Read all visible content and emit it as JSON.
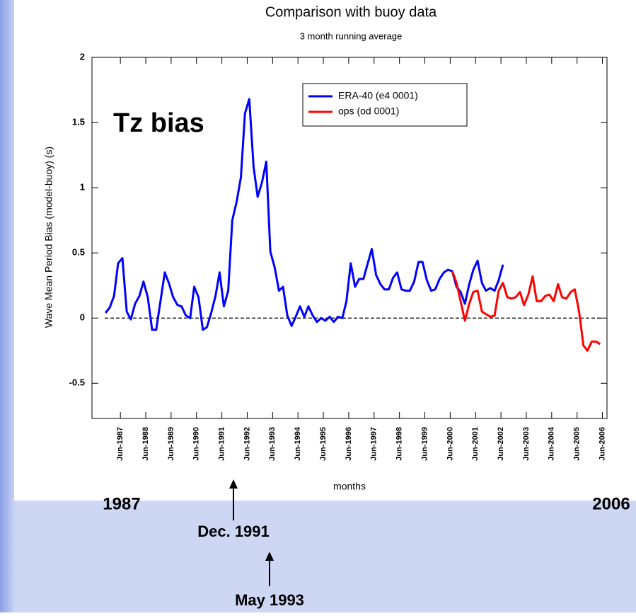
{
  "chart_data": {
    "type": "line",
    "title": "Comparison with buoy data",
    "subtitle": "3 month running average",
    "y_label": "Wave Mean Period  Bias (model-buoy) (s)",
    "x_label": "months",
    "annotation": "Tz bias",
    "reference_line": 0,
    "xlim": [
      1986.3,
      2006.6
    ],
    "ylim": [
      -0.77,
      2
    ],
    "yticks": [
      2,
      1.5,
      1,
      0.5,
      0,
      -0.5
    ],
    "xticks": [
      {
        "value": 1987.42,
        "label": "Jun-1987"
      },
      {
        "value": 1988.42,
        "label": "Jun-1988"
      },
      {
        "value": 1989.42,
        "label": "Jun-1989"
      },
      {
        "value": 1990.42,
        "label": "Jun-1990"
      },
      {
        "value": 1991.42,
        "label": "Jun-1991"
      },
      {
        "value": 1992.42,
        "label": "Jun-1992"
      },
      {
        "value": 1993.42,
        "label": "Jun-1993"
      },
      {
        "value": 1994.42,
        "label": "Jun-1994"
      },
      {
        "value": 1995.42,
        "label": "Jun-1995"
      },
      {
        "value": 1996.42,
        "label": "Jun-1996"
      },
      {
        "value": 1997.42,
        "label": "Jun-1997"
      },
      {
        "value": 1998.42,
        "label": "Jun-1998"
      },
      {
        "value": 1999.42,
        "label": "Jun-1999"
      },
      {
        "value": 2000.42,
        "label": "Jun-2000"
      },
      {
        "value": 2001.42,
        "label": "Jun-2001"
      },
      {
        "value": 2002.42,
        "label": "Jun-2002"
      },
      {
        "value": 2003.42,
        "label": "Jun-2003"
      },
      {
        "value": 2004.42,
        "label": "Jun-2004"
      },
      {
        "value": 2005.42,
        "label": "Jun-2005"
      },
      {
        "value": 2006.42,
        "label": "Jun-2006"
      }
    ],
    "series": [
      {
        "name": "ERA-40 (e4 0001)",
        "color": "#0000ff",
        "x": [
          1986.83,
          1987.0,
          1987.17,
          1987.33,
          1987.5,
          1987.67,
          1987.83,
          1988.0,
          1988.17,
          1988.33,
          1988.5,
          1988.67,
          1988.83,
          1989.0,
          1989.17,
          1989.33,
          1989.5,
          1989.67,
          1989.83,
          1990.0,
          1990.17,
          1990.33,
          1990.5,
          1990.67,
          1990.83,
          1991.0,
          1991.17,
          1991.33,
          1991.5,
          1991.67,
          1991.83,
          1992.0,
          1992.17,
          1992.33,
          1992.5,
          1992.67,
          1992.83,
          1993.0,
          1993.17,
          1993.33,
          1993.5,
          1993.67,
          1993.83,
          1994.0,
          1994.17,
          1994.33,
          1994.5,
          1994.67,
          1994.83,
          1995.0,
          1995.17,
          1995.33,
          1995.5,
          1995.67,
          1995.83,
          1996.0,
          1996.17,
          1996.33,
          1996.5,
          1996.67,
          1996.83,
          1997.0,
          1997.17,
          1997.33,
          1997.5,
          1997.67,
          1997.83,
          1998.0,
          1998.17,
          1998.33,
          1998.5,
          1998.67,
          1998.83,
          1999.0,
          1999.17,
          1999.33,
          1999.5,
          1999.67,
          1999.83,
          2000.0,
          2000.17,
          2000.33,
          2000.5,
          2000.67,
          2000.83,
          2001.0,
          2001.17,
          2001.33,
          2001.5,
          2001.67,
          2001.83,
          2002.0,
          2002.17,
          2002.33,
          2002.5
        ],
        "values": [
          0.04,
          0.08,
          0.17,
          0.42,
          0.46,
          0.05,
          -0.01,
          0.11,
          0.17,
          0.28,
          0.16,
          -0.09,
          -0.09,
          0.13,
          0.35,
          0.27,
          0.16,
          0.1,
          0.09,
          0.02,
          0.0,
          0.24,
          0.16,
          -0.09,
          -0.07,
          0.04,
          0.17,
          0.35,
          0.09,
          0.21,
          0.75,
          0.89,
          1.08,
          1.57,
          1.68,
          1.16,
          0.93,
          1.04,
          1.2,
          0.51,
          0.39,
          0.21,
          0.24,
          0.02,
          -0.06,
          0.01,
          0.09,
          0.01,
          0.09,
          0.02,
          -0.03,
          0.0,
          -0.02,
          0.01,
          -0.03,
          0.01,
          0.0,
          0.13,
          0.42,
          0.24,
          0.3,
          0.3,
          0.42,
          0.53,
          0.33,
          0.26,
          0.22,
          0.22,
          0.31,
          0.35,
          0.22,
          0.21,
          0.21,
          0.28,
          0.43,
          0.43,
          0.29,
          0.21,
          0.22,
          0.3,
          0.35,
          0.37,
          0.36,
          0.24,
          0.2,
          0.11,
          0.26,
          0.37,
          0.44,
          0.27,
          0.21,
          0.23,
          0.21,
          0.29,
          0.41
        ]
      },
      {
        "name": "ops (od 0001)",
        "color": "#ff0000",
        "x": [
          2000.5,
          2000.67,
          2000.83,
          2001.0,
          2001.17,
          2001.33,
          2001.5,
          2001.67,
          2001.83,
          2002.0,
          2002.17,
          2002.33,
          2002.5,
          2002.67,
          2002.83,
          2003.0,
          2003.17,
          2003.33,
          2003.5,
          2003.67,
          2003.83,
          2004.0,
          2004.17,
          2004.33,
          2004.5,
          2004.67,
          2004.83,
          2005.0,
          2005.17,
          2005.33,
          2005.5,
          2005.67,
          2005.83,
          2006.0,
          2006.17,
          2006.33
        ],
        "values": [
          0.36,
          0.27,
          0.13,
          -0.02,
          0.11,
          0.2,
          0.21,
          0.05,
          0.03,
          0.01,
          0.02,
          0.21,
          0.27,
          0.16,
          0.15,
          0.16,
          0.2,
          0.1,
          0.18,
          0.32,
          0.13,
          0.13,
          0.17,
          0.18,
          0.13,
          0.26,
          0.16,
          0.15,
          0.2,
          0.22,
          0.05,
          -0.21,
          -0.25,
          -0.18,
          -0.18,
          -0.2
        ]
      }
    ]
  },
  "slide_notes": {
    "start": "1987",
    "end": "2006",
    "event_1": "Dec. 1991",
    "event_2": "May 1993"
  }
}
